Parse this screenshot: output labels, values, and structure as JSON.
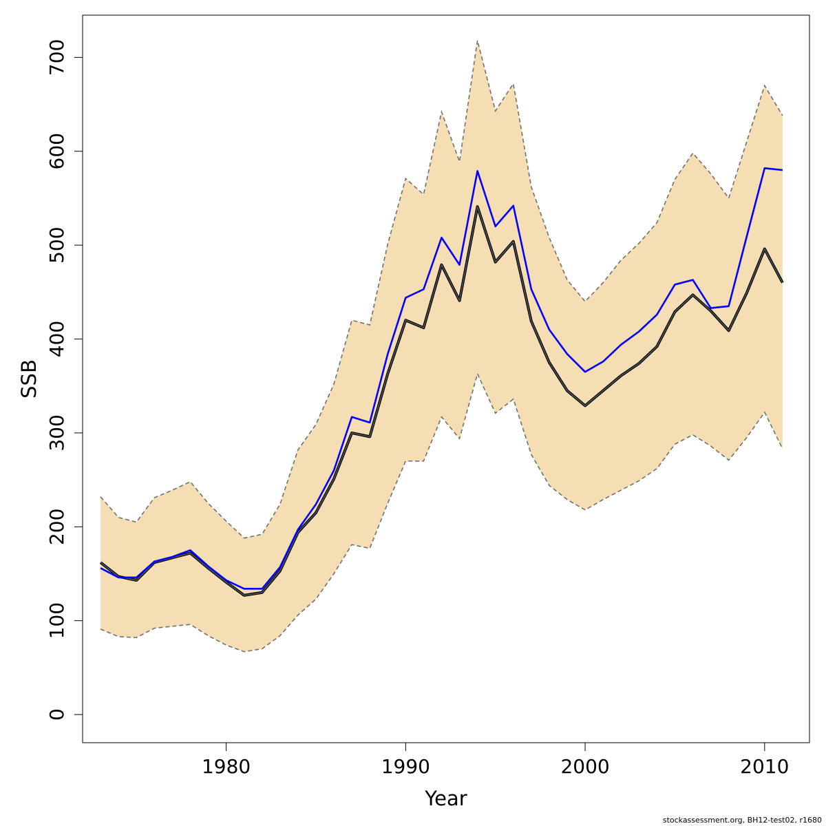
{
  "chart_data": {
    "type": "line",
    "title": "",
    "xlabel": "Year",
    "ylabel": "SSB",
    "xlim": [
      1972,
      2012.5
    ],
    "ylim": [
      -30,
      745
    ],
    "x_ticks": [
      1980,
      1990,
      2000,
      2010
    ],
    "y_ticks": [
      0,
      100,
      200,
      300,
      400,
      500,
      600,
      700
    ],
    "grid": false,
    "legend": "none",
    "colors": {
      "band_fill": "#F5DEB3",
      "band_edge": "#707070",
      "estimate_line": "#555555",
      "blue_line": "#0000FF"
    },
    "x": [
      1973,
      1974,
      1975,
      1976,
      1977,
      1978,
      1979,
      1980,
      1981,
      1982,
      1983,
      1984,
      1985,
      1986,
      1987,
      1988,
      1989,
      1990,
      1991,
      1992,
      1993,
      1994,
      1995,
      1996,
      1997,
      1998,
      1999,
      2000,
      2001,
      2002,
      2003,
      2004,
      2005,
      2006,
      2007,
      2008,
      2009,
      2010,
      2011
    ],
    "series": [
      {
        "role": "upper",
        "values": [
          232,
          210,
          205,
          231,
          239,
          248,
          225,
          206,
          188,
          192,
          224,
          282,
          309,
          352,
          420,
          415,
          501,
          571,
          554,
          642,
          589,
          718,
          643,
          672,
          562,
          508,
          463,
          440,
          460,
          484,
          502,
          524,
          570,
          598,
          576,
          550,
          610,
          670,
          638
        ]
      },
      {
        "role": "lower",
        "values": [
          91,
          83,
          82,
          92,
          94,
          96,
          84,
          74,
          67,
          70,
          84,
          106,
          123,
          150,
          181,
          177,
          225,
          270,
          270,
          317,
          294,
          363,
          321,
          336,
          277,
          244,
          229,
          218,
          229,
          239,
          249,
          262,
          288,
          298,
          286,
          271,
          295,
          322,
          283
        ]
      },
      {
        "role": "estimate",
        "values": [
          162,
          147,
          143,
          162,
          167,
          172,
          156,
          141,
          127,
          130,
          153,
          194,
          215,
          251,
          300,
          296,
          363,
          420,
          412,
          479,
          441,
          541,
          482,
          504,
          419,
          375,
          345,
          329,
          345,
          361,
          374,
          392,
          429,
          447,
          430,
          409,
          449,
          496,
          460
        ]
      },
      {
        "role": "blue",
        "values": [
          156,
          146,
          146,
          163,
          168,
          175,
          158,
          143,
          134,
          134,
          157,
          197,
          224,
          260,
          317,
          311,
          384,
          444,
          453,
          508,
          479,
          579,
          520,
          542,
          453,
          410,
          384,
          365,
          376,
          394,
          408,
          426,
          458,
          463,
          433,
          435,
          509,
          582,
          580
        ]
      }
    ]
  },
  "footer": {
    "caption": "stockassessment.org, BH12-test02, r1680"
  }
}
